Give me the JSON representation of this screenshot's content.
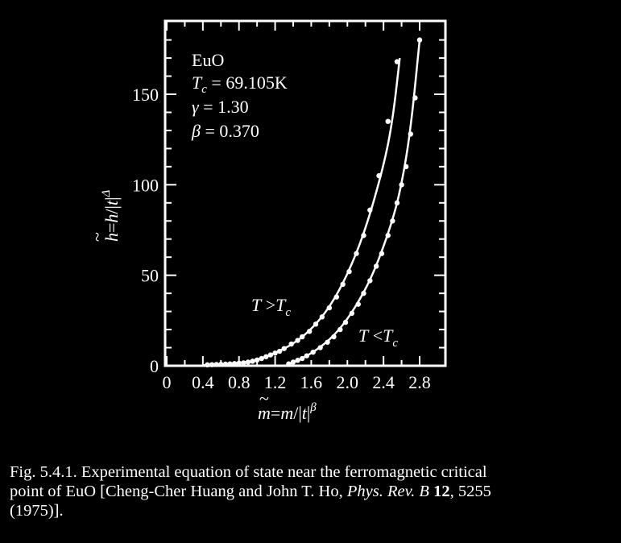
{
  "chart_data": {
    "type": "scatter",
    "xlim": [
      0,
      3.0
    ],
    "ylim": [
      0,
      190
    ],
    "x_ticks": [
      0,
      0.4,
      0.8,
      1.2,
      1.6,
      2.0,
      2.4,
      2.8
    ],
    "x_tick_labels": [
      "0",
      "0.4",
      "0.8",
      "1.2",
      "1.6",
      "2.0",
      "2.4",
      "2.8"
    ],
    "y_ticks": [
      0,
      50,
      100,
      150
    ],
    "y_tick_labels": [
      "0",
      "50",
      "100",
      "150"
    ],
    "xlabel": "m̃=m/|t|^β",
    "ylabel": "h̃=h/|t|^Δ",
    "annotation": [
      "EuO",
      "Tc = 69.105K",
      "γ = 1.30",
      "β = 0.370"
    ],
    "series": [
      {
        "name": "T >Tc",
        "points": [
          [
            0.45,
            0.5
          ],
          [
            0.5,
            0.6
          ],
          [
            0.55,
            0.7
          ],
          [
            0.6,
            0.8
          ],
          [
            0.65,
            0.9
          ],
          [
            0.7,
            1.0
          ],
          [
            0.75,
            1.2
          ],
          [
            0.8,
            1.4
          ],
          [
            0.85,
            1.6
          ],
          [
            0.9,
            2.0
          ],
          [
            0.95,
            2.5
          ],
          [
            1.0,
            3.2
          ],
          [
            1.05,
            4.0
          ],
          [
            1.1,
            5.0
          ],
          [
            1.15,
            6.0
          ],
          [
            1.2,
            7.0
          ],
          [
            1.25,
            8.0
          ],
          [
            1.3,
            9.5
          ],
          [
            1.38,
            12
          ],
          [
            1.45,
            14
          ],
          [
            1.5,
            16
          ],
          [
            1.58,
            19
          ],
          [
            1.65,
            23
          ],
          [
            1.72,
            27
          ],
          [
            1.8,
            32
          ],
          [
            1.88,
            38
          ],
          [
            1.95,
            45
          ],
          [
            2.02,
            52
          ],
          [
            2.1,
            62
          ],
          [
            2.18,
            72
          ],
          [
            2.25,
            86
          ],
          [
            2.35,
            105
          ],
          [
            2.45,
            135
          ],
          [
            2.55,
            168
          ]
        ],
        "curve": [
          [
            0.4,
            0.3
          ],
          [
            0.8,
            1.3
          ],
          [
            1.0,
            3.0
          ],
          [
            1.2,
            7
          ],
          [
            1.4,
            12
          ],
          [
            1.6,
            20
          ],
          [
            1.8,
            32
          ],
          [
            2.0,
            50
          ],
          [
            2.2,
            75
          ],
          [
            2.4,
            110
          ],
          [
            2.5,
            135
          ],
          [
            2.58,
            170
          ]
        ]
      },
      {
        "name": "T <Tc",
        "points": [
          [
            1.35,
            1.0
          ],
          [
            1.4,
            2
          ],
          [
            1.45,
            3
          ],
          [
            1.5,
            4
          ],
          [
            1.55,
            5.5
          ],
          [
            1.62,
            7.5
          ],
          [
            1.7,
            10
          ],
          [
            1.78,
            13
          ],
          [
            1.85,
            16
          ],
          [
            1.92,
            20
          ],
          [
            1.98,
            24
          ],
          [
            2.05,
            29
          ],
          [
            2.12,
            34
          ],
          [
            2.18,
            40
          ],
          [
            2.25,
            47
          ],
          [
            2.32,
            55
          ],
          [
            2.38,
            62
          ],
          [
            2.45,
            72
          ],
          [
            2.5,
            80
          ],
          [
            2.55,
            90
          ],
          [
            2.6,
            100
          ],
          [
            2.65,
            110
          ],
          [
            2.7,
            128
          ],
          [
            2.75,
            148
          ],
          [
            2.8,
            180
          ]
        ],
        "curve": [
          [
            1.32,
            0
          ],
          [
            1.5,
            4
          ],
          [
            1.7,
            10
          ],
          [
            1.9,
            19
          ],
          [
            2.1,
            33
          ],
          [
            2.3,
            52
          ],
          [
            2.5,
            80
          ],
          [
            2.6,
            100
          ],
          [
            2.7,
            130
          ],
          [
            2.8,
            180
          ]
        ]
      }
    ]
  },
  "caption": {
    "line1": "Fig. 5.4.1. Experimental equation of state near the ferromagnetic critical",
    "line2_a": "point of EuO [Cheng-Cher Huang and John T. Ho, ",
    "journal": "Phys. Rev. B",
    "volume": "12",
    "line2_b": ", 5255",
    "line3": "(1975)]."
  }
}
